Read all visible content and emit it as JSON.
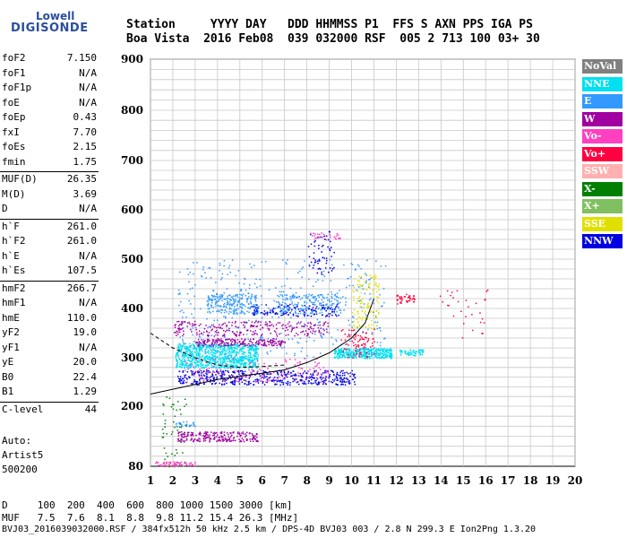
{
  "logo": {
    "lowell": "Lowell",
    "digisonde": "DIGISONDE"
  },
  "header": {
    "row1": "Station     YYYY DAY   DDD HHMMSS P1  FFS S AXN PPS IGA PS",
    "row2": "Boa Vista  2016 Feb08  039 032000 RSF  005 2 713 100 03+ 30"
  },
  "params": [
    {
      "k": "foF2",
      "v": "7.150"
    },
    {
      "k": "foF1",
      "v": "N/A"
    },
    {
      "k": "foF1p",
      "v": "N/A"
    },
    {
      "k": "foE",
      "v": "N/A"
    },
    {
      "k": "foEp",
      "v": "0.43"
    },
    {
      "k": "fxI",
      "v": "7.70"
    },
    {
      "k": "foEs",
      "v": "2.15"
    },
    {
      "k": "fmin",
      "v": "1.75"
    },
    {
      "k": "MUF(D)",
      "v": "26.35"
    },
    {
      "k": "M(D)",
      "v": "3.69"
    },
    {
      "k": "D",
      "v": "N/A"
    },
    {
      "k": "h`F",
      "v": "261.0"
    },
    {
      "k": "h`F2",
      "v": "261.0"
    },
    {
      "k": "h`E",
      "v": "N/A"
    },
    {
      "k": "h`Es",
      "v": "107.5"
    },
    {
      "k": "hmF2",
      "v": "266.7"
    },
    {
      "k": "hmF1",
      "v": "N/A"
    },
    {
      "k": "hmE",
      "v": "110.0"
    },
    {
      "k": "yF2",
      "v": "19.0"
    },
    {
      "k": "yF1",
      "v": "N/A"
    },
    {
      "k": "yE",
      "v": "20.0"
    },
    {
      "k": "B0",
      "v": "22.4"
    },
    {
      "k": "B1",
      "v": "1.29"
    },
    {
      "k": "C-level",
      "v": "44"
    }
  ],
  "auto": {
    "line1": "Auto:",
    "line2": "Artist5",
    "line3": "500200"
  },
  "legend": [
    {
      "label": "NoVal",
      "color": "#808080"
    },
    {
      "label": "NNE",
      "color": "#00e0f0"
    },
    {
      "label": "E",
      "color": "#3399ff"
    },
    {
      "label": "W",
      "color": "#a000a0"
    },
    {
      "label": "Vo-",
      "color": "#ff40c0"
    },
    {
      "label": "Vo+",
      "color": "#ff0040"
    },
    {
      "label": "SSW",
      "color": "#ffb0b0"
    },
    {
      "label": "X-",
      "color": "#008000"
    },
    {
      "label": "X+",
      "color": "#80c060"
    },
    {
      "label": "SSE",
      "color": "#e0e000"
    },
    {
      "label": "NNW",
      "color": "#0000e0"
    }
  ],
  "footer": {
    "row1": "D     100  200  400  600  800 1000 1500 3000 [km]",
    "row2": "MUF   7.5  7.6  8.1  8.8  9.8 11.2 15.4 26.3 [MHz]",
    "row3": "BVJ03_2016039032000.RSF / 384fx512h 50 kHz 2.5 km / DPS-4D BVJ03 003 / 2.8 N 299.3 E Ion2Png 1.3.20"
  },
  "chart_data": {
    "type": "scatter",
    "xlim": [
      1,
      20
    ],
    "ylim": [
      80,
      900
    ],
    "xticks": [
      1,
      2,
      3,
      4,
      5,
      6,
      7,
      8,
      9,
      10,
      11,
      12,
      13,
      14,
      15,
      16,
      17,
      18,
      19,
      20
    ],
    "yticks": [
      80,
      200,
      300,
      400,
      500,
      600,
      700,
      800,
      900
    ],
    "grid": true,
    "clusters": [
      {
        "color": "#00e0f0",
        "x": [
          2.1,
          5.8
        ],
        "y": [
          280,
          330
        ],
        "n": 900
      },
      {
        "color": "#00e0f0",
        "x": [
          9.2,
          11.8
        ],
        "y": [
          300,
          320
        ],
        "n": 350
      },
      {
        "color": "#00e0f0",
        "x": [
          12.1,
          13.2
        ],
        "y": [
          305,
          318
        ],
        "n": 60
      },
      {
        "color": "#3399ff",
        "x": [
          3.5,
          5.8
        ],
        "y": [
          390,
          430
        ],
        "n": 220
      },
      {
        "color": "#3399ff",
        "x": [
          6.5,
          9.5
        ],
        "y": [
          390,
          430
        ],
        "n": 200
      },
      {
        "color": "#3399ff",
        "x": [
          2.2,
          11.5
        ],
        "y": [
          300,
          500
        ],
        "n": 400
      },
      {
        "color": "#a000a0",
        "x": [
          3.0,
          7.0
        ],
        "y": [
          325,
          340
        ],
        "n": 200
      },
      {
        "color": "#a000a0",
        "x": [
          2.0,
          9.0
        ],
        "y": [
          345,
          375
        ],
        "n": 250
      },
      {
        "color": "#a000a0",
        "x": [
          2.2,
          5.8
        ],
        "y": [
          130,
          150
        ],
        "n": 220
      },
      {
        "color": "#0000e0",
        "x": [
          2.2,
          10.2
        ],
        "y": [
          245,
          275
        ],
        "n": 500
      },
      {
        "color": "#0000e0",
        "x": [
          5.5,
          9.5
        ],
        "y": [
          385,
          410
        ],
        "n": 120
      },
      {
        "color": "#0000e0",
        "x": [
          8.0,
          9.2
        ],
        "y": [
          470,
          560
        ],
        "n": 60
      },
      {
        "color": "#ff40c0",
        "x": [
          2.5,
          9.0
        ],
        "y": [
          250,
          300
        ],
        "n": 150
      },
      {
        "color": "#ff40c0",
        "x": [
          8.0,
          9.5
        ],
        "y": [
          540,
          555
        ],
        "n": 30
      },
      {
        "color": "#ff0040",
        "x": [
          9.5,
          11.0
        ],
        "y": [
          300,
          360
        ],
        "n": 80
      },
      {
        "color": "#ff0040",
        "x": [
          12.0,
          12.8
        ],
        "y": [
          410,
          430
        ],
        "n": 40
      },
      {
        "color": "#ff0040",
        "x": [
          13.8,
          16.5
        ],
        "y": [
          340,
          440
        ],
        "n": 30
      },
      {
        "color": "#e0e000",
        "x": [
          10.0,
          11.2
        ],
        "y": [
          360,
          470
        ],
        "n": 120
      },
      {
        "color": "#008000",
        "x": [
          1.5,
          2.6
        ],
        "y": [
          80,
          220
        ],
        "n": 50
      },
      {
        "color": "#ff40c0",
        "x": [
          1.2,
          3.0
        ],
        "y": [
          80,
          90
        ],
        "n": 60
      },
      {
        "color": "#3399ff",
        "x": [
          2.0,
          3.0
        ],
        "y": [
          160,
          170
        ],
        "n": 25
      }
    ]
  }
}
